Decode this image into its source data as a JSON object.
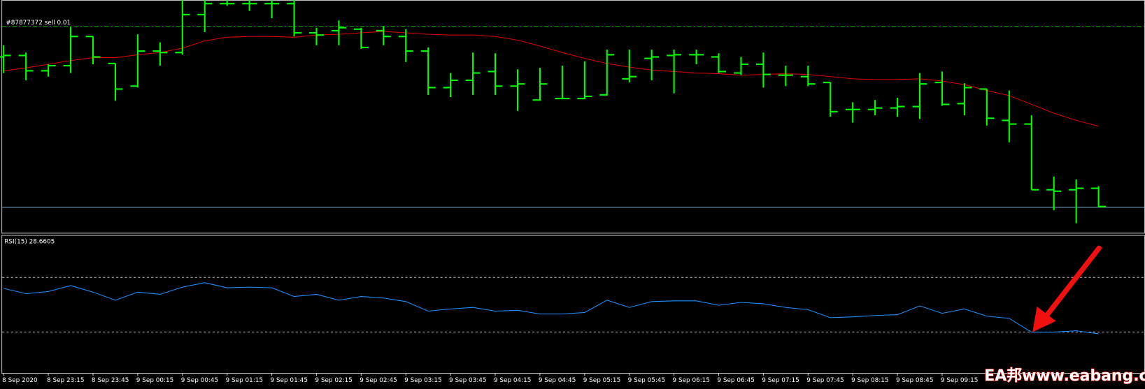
{
  "chart_data": [
    {
      "type": "ohlc",
      "label": "#87877372 sell 0.01",
      "color": "#00ff00",
      "ylim": [
        0,
        320
      ],
      "open": [
        242,
        244,
        223,
        230,
        270,
        233,
        202,
        250,
        248,
        300,
        315,
        315,
        315,
        315,
        275,
        278,
        280,
        278,
        270,
        250,
        200,
        210,
        222,
        202,
        183,
        185,
        185,
        190,
        212,
        240,
        244,
        245,
        242,
        220,
        232,
        217,
        215,
        207,
        170,
        170,
        172,
        174,
        207,
        178,
        198,
        155,
        150,
        60,
        60,
        62
      ],
      "high": [
        258,
        248,
        232,
        283,
        270,
        233,
        273,
        262,
        320,
        320,
        320,
        320,
        320,
        320,
        282,
        292,
        282,
        284,
        280,
        255,
        220,
        248,
        247,
        225,
        227,
        230,
        236,
        252,
        252,
        252,
        252,
        252,
        247,
        242,
        248,
        230,
        230,
        207,
        180,
        183,
        186,
        220,
        222,
        206,
        198,
        196,
        162,
        78,
        74,
        65
      ],
      "low": [
        220,
        210,
        215,
        220,
        232,
        182,
        200,
        230,
        245,
        276,
        312,
        305,
        295,
        270,
        258,
        258,
        253,
        258,
        235,
        190,
        187,
        190,
        190,
        168,
        182,
        184,
        184,
        189,
        207,
        210,
        192,
        232,
        220,
        217,
        200,
        202,
        202,
        160,
        152,
        162,
        160,
        157,
        175,
        162,
        148,
        125,
        60,
        32,
        14,
        36
      ],
      "close": [
        244,
        223,
        230,
        270,
        242,
        198,
        250,
        248,
        300,
        315,
        315,
        315,
        315,
        275,
        272,
        282,
        255,
        270,
        250,
        200,
        210,
        220,
        202,
        205,
        205,
        185,
        188,
        245,
        215,
        242,
        245,
        245,
        222,
        232,
        218,
        217,
        205,
        167,
        170,
        172,
        174,
        205,
        177,
        200,
        158,
        150,
        60,
        58,
        62,
        37
      ],
      "ma": {
        "color": "#e00000",
        "values": [
          223,
          227,
          232,
          237,
          241,
          241,
          245,
          248,
          254,
          264,
          269,
          270,
          270,
          269,
          272,
          273,
          275,
          277,
          275,
          273,
          272,
          272,
          270,
          265,
          257,
          248,
          240,
          233,
          228,
          224,
          222,
          220,
          219,
          217,
          218,
          219,
          218,
          215,
          212,
          211,
          211,
          212,
          209,
          204,
          196,
          189,
          177,
          165,
          155,
          147
        ]
      },
      "order_level": 284,
      "order_color": "#00c000",
      "price_line": 36,
      "price_line_color": "#8ab4d8"
    },
    {
      "type": "line",
      "title": "RSI(15) 28.6605",
      "color": "#1e90ff",
      "ylim": [
        0,
        100
      ],
      "levels": [
        70,
        30
      ],
      "values": [
        61.9,
        58.1,
        59.7,
        64.0,
        59.2,
        53.3,
        59.2,
        57.6,
        62.9,
        66.1,
        62.4,
        62.9,
        62.4,
        56.0,
        57.6,
        53.3,
        56.0,
        54.9,
        52.3,
        45.3,
        46.9,
        48.0,
        45.3,
        45.9,
        43.2,
        43.2,
        44.3,
        53.3,
        48.0,
        52.3,
        52.8,
        52.8,
        49.6,
        51.7,
        50.7,
        48.0,
        46.4,
        40.5,
        41.1,
        42.1,
        42.7,
        49.1,
        43.7,
        46.9,
        41.6,
        40.0,
        29.9,
        29.9,
        30.9,
        28.7
      ],
      "categories": [
        "8 Sep 2020",
        null,
        "8 Sep 23:15",
        null,
        "8 Sep 23:45",
        null,
        "9 Sep 00:15",
        null,
        "9 Sep 00:45",
        null,
        "9 Sep 01:15",
        null,
        "9 Sep 01:45",
        null,
        "9 Sep 02:15",
        null,
        "9 Sep 02:45",
        null,
        "9 Sep 03:15",
        null,
        "9 Sep 03:45",
        null,
        "9 Sep 04:15",
        null,
        "9 Sep 04:45",
        null,
        "9 Sep 05:15",
        null,
        "9 Sep 05:45",
        null,
        "9 Sep 06:15",
        null,
        "9 Sep 06:45",
        null,
        "9 Sep 07:15",
        null,
        "9 Sep 07:45",
        null,
        "9 Sep 08:15",
        null,
        "9 Sep 08:45",
        null,
        "9 Sep 09:15",
        null,
        null,
        null,
        null,
        null,
        null,
        null
      ]
    }
  ],
  "watermark": "EA邦www.eabang.com"
}
